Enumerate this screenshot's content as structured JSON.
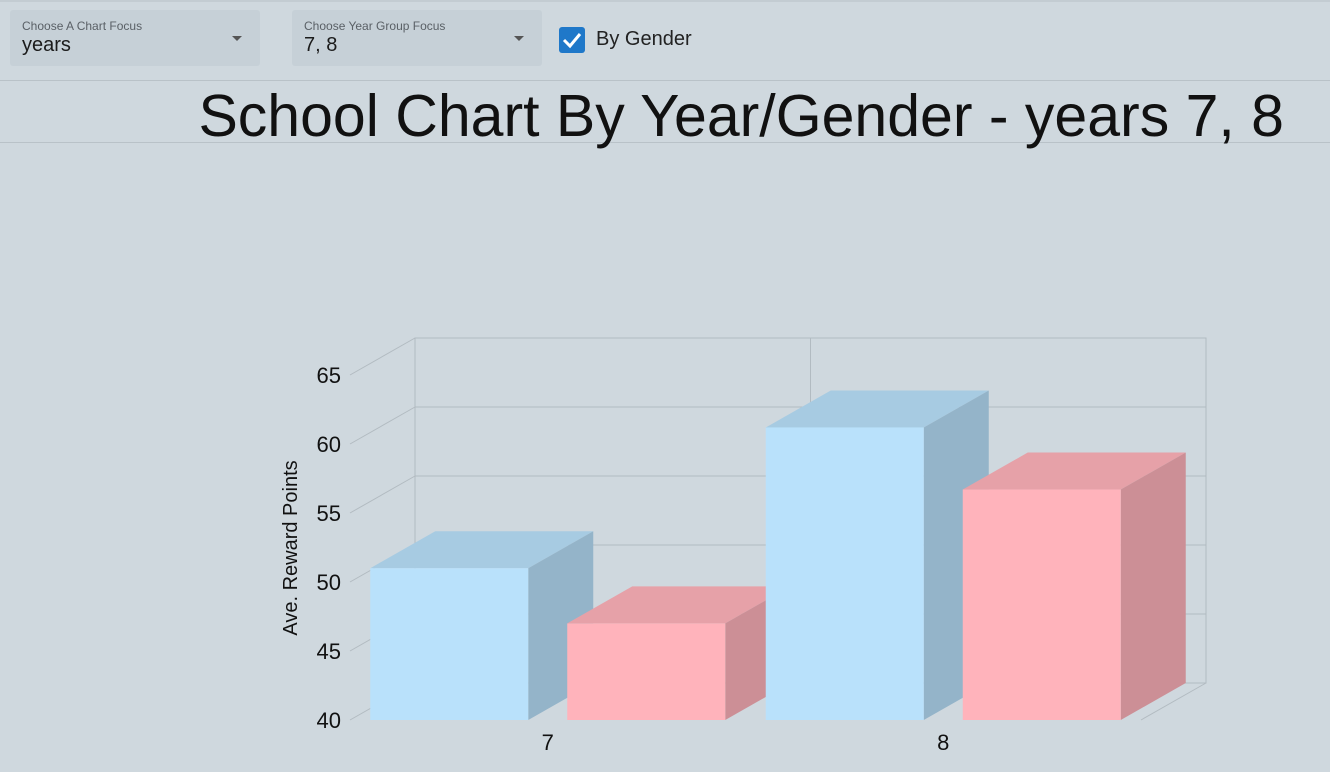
{
  "controls": {
    "chart_focus": {
      "label": "Choose A Chart Focus",
      "value": "years"
    },
    "year_focus": {
      "label": "Choose Year Group Focus",
      "value": "7, 8"
    },
    "by_gender": {
      "label": "By Gender",
      "checked": true
    }
  },
  "chart_data": {
    "type": "bar",
    "style": "3d",
    "title": "School Chart By Year/Gender - years 7, 8",
    "xlabel": "",
    "ylabel": "Ave. Reward Points",
    "categories": [
      "7",
      "8"
    ],
    "series": [
      {
        "color": "#b9e1fb",
        "values": [
          51,
          61.2
        ]
      },
      {
        "color": "#ffb3bb",
        "values": [
          47,
          56.7
        ]
      }
    ],
    "ylim": [
      40,
      65
    ],
    "yticks": [
      "40",
      "45",
      "50",
      "55",
      "60",
      "65"
    ],
    "grid": true
  },
  "colors": {
    "background": "#cfd8de",
    "checkbox": "#1f78c9"
  }
}
